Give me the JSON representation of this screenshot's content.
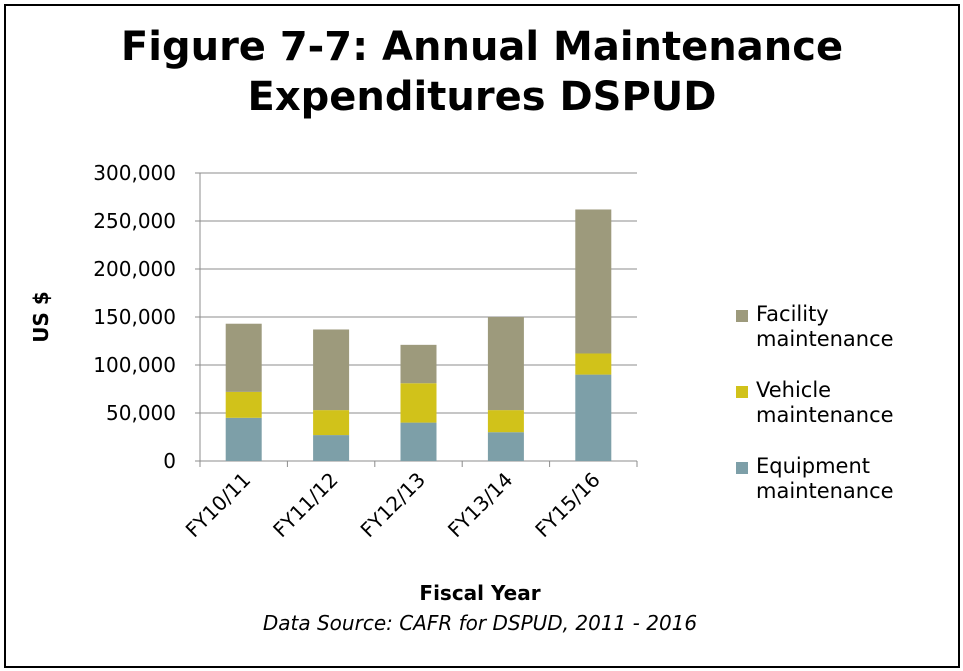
{
  "chart_data": {
    "type": "stacked_bar",
    "title": [
      "Figure 7-7: Annual Maintenance",
      "Expenditures DSPUD"
    ],
    "y_label": "US $",
    "x_label": "Fiscal Year",
    "source": "Data Source:  CAFR for DSPUD, 2011 - 2016",
    "categories": [
      "FY10/11",
      "FY11/12",
      "FY12/13",
      "FY13/14",
      "FY15/16"
    ],
    "series": [
      {
        "name": "Equipment maintenance",
        "color": "#7d9fa8",
        "values": [
          45000,
          27000,
          40000,
          30000,
          90000
        ]
      },
      {
        "name": "Vehicle maintenance",
        "color": "#d1c21a",
        "values": [
          27000,
          26000,
          41000,
          23000,
          22000
        ]
      },
      {
        "name": "Facility maintenance",
        "color": "#9d9a7c",
        "values": [
          71000,
          84000,
          40000,
          97000,
          150000
        ]
      }
    ],
    "ylim": [
      0,
      300000
    ],
    "yticks": [
      0,
      {
        "value": 50000,
        "label": "50,000"
      },
      {
        "value": 100000,
        "label": "100,000"
      },
      {
        "value": 150000,
        "label": "150,000"
      },
      {
        "value": 200000,
        "label": "200,000"
      },
      {
        "value": 250000,
        "label": "250,000"
      },
      {
        "value": 300000,
        "label": "300,000"
      }
    ],
    "grid": true,
    "legend": "right"
  }
}
